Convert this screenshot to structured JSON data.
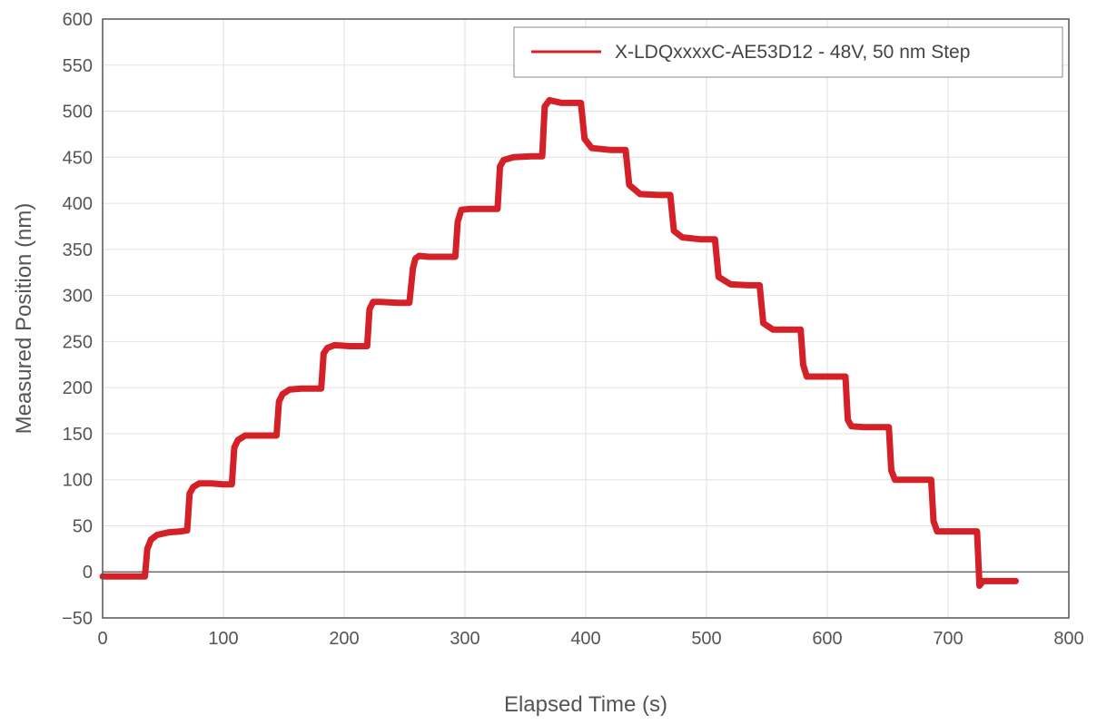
{
  "chart_data": {
    "type": "line",
    "title": "",
    "xlabel": "Elapsed Time (s)",
    "ylabel": "Measured Position (nm)",
    "xlim": [
      0,
      800
    ],
    "ylim": [
      -50,
      600
    ],
    "x_ticks": [
      0,
      100,
      200,
      300,
      400,
      500,
      600,
      700,
      800
    ],
    "x_tick_labels": [
      "0",
      "100",
      "200",
      "300",
      "400",
      "500",
      "600",
      "700",
      "800"
    ],
    "y_ticks": [
      -50,
      0,
      50,
      100,
      150,
      200,
      250,
      300,
      350,
      400,
      450,
      500,
      550,
      600
    ],
    "y_tick_labels": [
      "−50",
      "0",
      "50",
      "100",
      "150",
      "200",
      "250",
      "300",
      "350",
      "400",
      "450",
      "500",
      "550",
      "600"
    ],
    "grid": true,
    "zero_line": true,
    "legend_position": "top-right",
    "series": [
      {
        "name": "X-LDQxxxxC-AE53D12 - 48V, 50 nm Step",
        "color": "#d42027",
        "x": [
          0,
          35,
          37,
          40,
          45,
          55,
          65,
          70,
          72,
          75,
          80,
          90,
          100,
          107,
          109,
          112,
          118,
          130,
          140,
          144,
          146,
          149,
          155,
          165,
          177,
          181,
          183,
          186,
          192,
          205,
          215,
          219,
          221,
          224,
          230,
          245,
          254,
          257,
          259,
          262,
          270,
          282,
          292,
          294,
          297,
          305,
          320,
          327,
          329,
          332,
          340,
          355,
          364,
          366,
          370,
          380,
          394,
          396,
          399,
          405,
          420,
          431,
          433,
          436,
          445,
          460,
          468,
          470,
          473,
          480,
          495,
          505,
          507,
          510,
          520,
          535,
          542,
          544,
          547,
          555,
          570,
          578,
          580,
          583,
          595,
          610,
          615,
          617,
          620,
          630,
          645,
          651,
          653,
          656,
          665,
          680,
          686,
          688,
          691,
          700,
          720,
          724,
          726,
          729,
          740,
          756
        ],
        "y": [
          -5,
          -5,
          25,
          35,
          40,
          43,
          44,
          45,
          85,
          92,
          96,
          96,
          95,
          95,
          135,
          143,
          148,
          148,
          148,
          148,
          185,
          193,
          198,
          199,
          199,
          199,
          237,
          243,
          246,
          245,
          245,
          245,
          285,
          293,
          293,
          292,
          292,
          330,
          340,
          343,
          342,
          342,
          342,
          380,
          393,
          394,
          394,
          394,
          440,
          447,
          450,
          451,
          451,
          505,
          512,
          509,
          509,
          509,
          470,
          460,
          458,
          458,
          458,
          420,
          410,
          409,
          409,
          409,
          370,
          363,
          361,
          361,
          361,
          320,
          312,
          311,
          311,
          311,
          270,
          263,
          263,
          263,
          225,
          212,
          212,
          212,
          212,
          165,
          158,
          157,
          157,
          157,
          110,
          100,
          100,
          100,
          100,
          55,
          44,
          44,
          44,
          44,
          -15,
          -10,
          -10,
          -10
        ]
      }
    ]
  }
}
